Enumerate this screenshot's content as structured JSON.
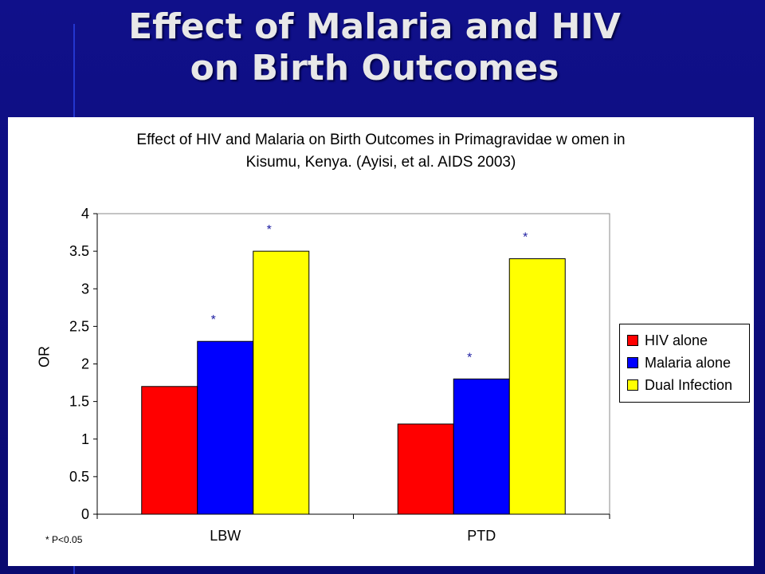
{
  "slide": {
    "title_line1": "Effect of Malaria and HIV",
    "title_line2": "on Birth Outcomes"
  },
  "chart_data": {
    "type": "bar",
    "title_line1": "Effect of HIV and Malaria on Birth Outcomes in Primagravidae w omen in",
    "title_line2": "Kisumu, Kenya.  (Ayisi, et al. AIDS 2003)",
    "ylabel": "OR",
    "xlabel": "",
    "categories": [
      "LBW",
      "PTD"
    ],
    "series": [
      {
        "name": "HIV alone",
        "color": "#ff0000",
        "values": [
          1.7,
          1.2
        ]
      },
      {
        "name": "Malaria alone",
        "color": "#0000ff",
        "values": [
          2.3,
          1.8
        ]
      },
      {
        "name": "Dual Infection",
        "color": "#ffff00",
        "values": [
          3.5,
          3.4
        ]
      }
    ],
    "ylim": [
      0,
      4
    ],
    "yticks": [
      "0",
      "0.5",
      "1",
      "1.5",
      "2",
      "2.5",
      "3",
      "3.5",
      "4"
    ],
    "significance": [
      {
        "series": 1,
        "category": 0,
        "label": "*"
      },
      {
        "series": 2,
        "category": 0,
        "label": "*"
      },
      {
        "series": 1,
        "category": 1,
        "label": "*"
      },
      {
        "series": 2,
        "category": 1,
        "label": "*"
      }
    ],
    "significance_color": "#1a1aa0",
    "footnote": "* P<0.05",
    "grid": false,
    "legend_position": "right"
  }
}
